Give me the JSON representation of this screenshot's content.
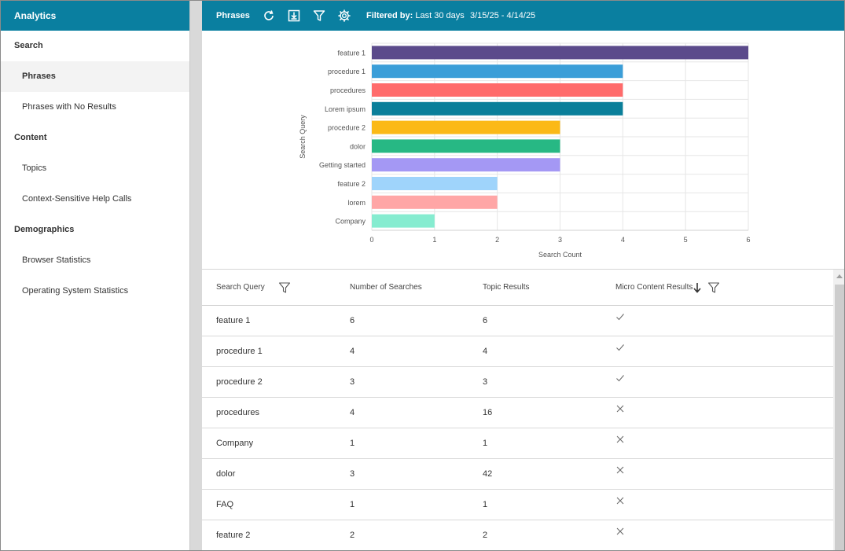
{
  "sidebar": {
    "header": "Analytics",
    "sections": [
      {
        "label": "Search",
        "items": [
          {
            "label": "Phrases",
            "active": true
          },
          {
            "label": "Phrases with No Results",
            "active": false
          }
        ]
      },
      {
        "label": "Content",
        "items": [
          {
            "label": "Topics",
            "active": false
          },
          {
            "label": "Context-Sensitive Help Calls",
            "active": false
          }
        ]
      },
      {
        "label": "Demographics",
        "items": [
          {
            "label": "Browser Statistics",
            "active": false
          },
          {
            "label": "Operating System Statistics",
            "active": false
          }
        ]
      }
    ]
  },
  "toolbar": {
    "title": "Phrases",
    "icons": [
      "refresh-icon",
      "download-icon",
      "filter-icon",
      "gear-icon"
    ],
    "filter_label": "Filtered by:",
    "filter_value": "Last 30 days",
    "date_range": "3/15/25 - 4/14/25"
  },
  "chart_data": {
    "type": "bar",
    "orientation": "horizontal",
    "categories": [
      "feature 1",
      "procedure 1",
      "procedures",
      "Lorem ipsum",
      "procedure 2",
      "dolor",
      "Getting started",
      "feature 2",
      "lorem",
      "Company"
    ],
    "values": [
      6,
      4,
      4,
      4,
      3,
      3,
      3,
      2,
      2,
      1
    ],
    "colors": [
      "#5b4a8b",
      "#3b9ed8",
      "#ff6b6b",
      "#0a7f9a",
      "#fbb917",
      "#27b884",
      "#a498f4",
      "#9fd4fb",
      "#ffa6a6",
      "#86ecd0"
    ],
    "xlabel": "Search Count",
    "ylabel": "Search Query",
    "xlim": [
      0,
      6
    ],
    "xticks": [
      "0",
      "1",
      "2",
      "3",
      "4",
      "5",
      "6"
    ],
    "grid": true
  },
  "table": {
    "columns": [
      "Search Query",
      "Number of Searches",
      "Topic Results",
      "Micro Content Results"
    ],
    "rows": [
      {
        "query": "feature 1",
        "searches": "6",
        "topics": "6",
        "micro": "check"
      },
      {
        "query": "procedure 1",
        "searches": "4",
        "topics": "4",
        "micro": "check"
      },
      {
        "query": "procedure 2",
        "searches": "3",
        "topics": "3",
        "micro": "check"
      },
      {
        "query": "procedures",
        "searches": "4",
        "topics": "16",
        "micro": "cross"
      },
      {
        "query": "Company",
        "searches": "1",
        "topics": "1",
        "micro": "cross"
      },
      {
        "query": "dolor",
        "searches": "3",
        "topics": "42",
        "micro": "cross"
      },
      {
        "query": "FAQ",
        "searches": "1",
        "topics": "1",
        "micro": "cross"
      },
      {
        "query": "feature 2",
        "searches": "2",
        "topics": "2",
        "micro": "cross"
      }
    ]
  },
  "colors": {
    "accent": "#0a7fa0"
  }
}
